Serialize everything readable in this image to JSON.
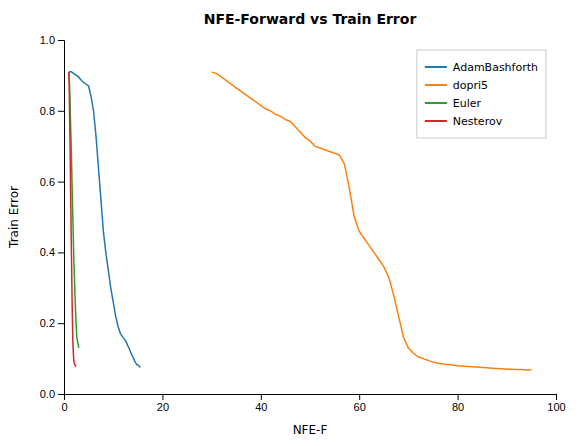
{
  "chart_data": {
    "type": "line",
    "title": "NFE-Forward vs Train Error",
    "xlabel": "NFE-F",
    "ylabel": "Train Error",
    "xlim": [
      0,
      100
    ],
    "ylim": [
      0.0,
      1.0
    ],
    "xticks": [
      0,
      20,
      40,
      60,
      80,
      100
    ],
    "yticks": [
      {
        "value": 0.0,
        "label": "0.0"
      },
      0.2,
      0.4,
      0.6,
      0.8,
      {
        "value": 1.0,
        "label": "1.0"
      }
    ],
    "grid": false,
    "legend": "upper right",
    "series": [
      {
        "name": "AdamBashforth",
        "color": "#1f77b4",
        "x": [
          1.0,
          1.5,
          2.0,
          2.5,
          3.0,
          3.3,
          3.6,
          4.0,
          4.5,
          5.0,
          5.5,
          6.0,
          6.5,
          7.0,
          7.5,
          8.0,
          8.5,
          9.0,
          9.5,
          10.0,
          10.5,
          11.0,
          11.5,
          12.0,
          12.3,
          12.5,
          12.7,
          13.0,
          13.2,
          13.5,
          13.8,
          14.0,
          14.3,
          14.5,
          14.8,
          15.0,
          15.2,
          15.5
        ],
        "values": [
          0.91,
          0.91,
          0.905,
          0.9,
          0.895,
          0.89,
          0.885,
          0.88,
          0.875,
          0.87,
          0.84,
          0.8,
          0.73,
          0.64,
          0.55,
          0.46,
          0.4,
          0.35,
          0.3,
          0.26,
          0.22,
          0.19,
          0.17,
          0.16,
          0.155,
          0.15,
          0.145,
          0.135,
          0.13,
          0.12,
          0.11,
          0.105,
          0.095,
          0.09,
          0.083,
          0.082,
          0.08,
          0.075
        ]
      },
      {
        "name": "dopri5",
        "color": "#ff7f0e",
        "x": [
          30.0,
          31.0,
          32.0,
          33.0,
          34.0,
          35.0,
          36.0,
          37.0,
          38.0,
          39.0,
          40.0,
          41.0,
          42.0,
          43.0,
          44.0,
          45.0,
          46.0,
          47.0,
          48.0,
          49.0,
          50.0,
          51.0,
          52.0,
          53.0,
          54.0,
          55.0,
          56.0,
          57.0,
          58.0,
          59.0,
          60.0,
          61.0,
          62.0,
          63.0,
          64.0,
          65.0,
          66.0,
          67.0,
          68.0,
          69.0,
          70.0,
          71.0,
          72.0,
          73.0,
          74.0,
          75.0,
          76.0,
          77.0,
          78.0,
          79.0,
          80.0,
          81.0,
          82.0,
          83.0,
          84.0,
          85.0,
          86.0,
          87.0,
          88.0,
          89.0,
          90.0,
          91.0,
          92.0,
          93.0,
          94.0,
          95.0
        ],
        "values": [
          0.91,
          0.905,
          0.895,
          0.885,
          0.875,
          0.865,
          0.855,
          0.845,
          0.835,
          0.825,
          0.815,
          0.805,
          0.8,
          0.79,
          0.785,
          0.775,
          0.77,
          0.755,
          0.74,
          0.725,
          0.715,
          0.7,
          0.695,
          0.69,
          0.685,
          0.68,
          0.675,
          0.65,
          0.58,
          0.5,
          0.46,
          0.44,
          0.42,
          0.4,
          0.38,
          0.36,
          0.33,
          0.28,
          0.22,
          0.16,
          0.13,
          0.115,
          0.105,
          0.1,
          0.095,
          0.09,
          0.087,
          0.085,
          0.083,
          0.082,
          0.08,
          0.079,
          0.078,
          0.077,
          0.076,
          0.075,
          0.074,
          0.073,
          0.072,
          0.071,
          0.07,
          0.07,
          0.069,
          0.069,
          0.068,
          0.068
        ]
      },
      {
        "name": "Euler",
        "color": "#2ca02c",
        "x": [
          1.0,
          1.1,
          1.2,
          1.3,
          1.5,
          1.7,
          2.0,
          2.3,
          2.6,
          3.0
        ],
        "values": [
          0.91,
          0.88,
          0.84,
          0.78,
          0.68,
          0.55,
          0.38,
          0.25,
          0.16,
          0.13
        ]
      },
      {
        "name": "Nesterov",
        "color": "#d62728",
        "x": [
          1.0,
          1.05,
          1.1,
          1.15,
          1.2,
          1.25,
          1.3,
          1.35,
          1.4,
          1.45,
          1.5,
          1.55,
          1.6,
          1.65,
          1.7,
          1.75,
          1.8,
          1.85,
          1.9,
          1.95,
          2.0,
          2.1,
          2.2,
          2.3,
          2.5
        ],
        "values": [
          0.91,
          0.88,
          0.83,
          0.78,
          0.73,
          0.68,
          0.63,
          0.57,
          0.52,
          0.46,
          0.41,
          0.36,
          0.31,
          0.26,
          0.22,
          0.18,
          0.15,
          0.13,
          0.115,
          0.105,
          0.095,
          0.085,
          0.082,
          0.08,
          0.078
        ]
      }
    ]
  }
}
